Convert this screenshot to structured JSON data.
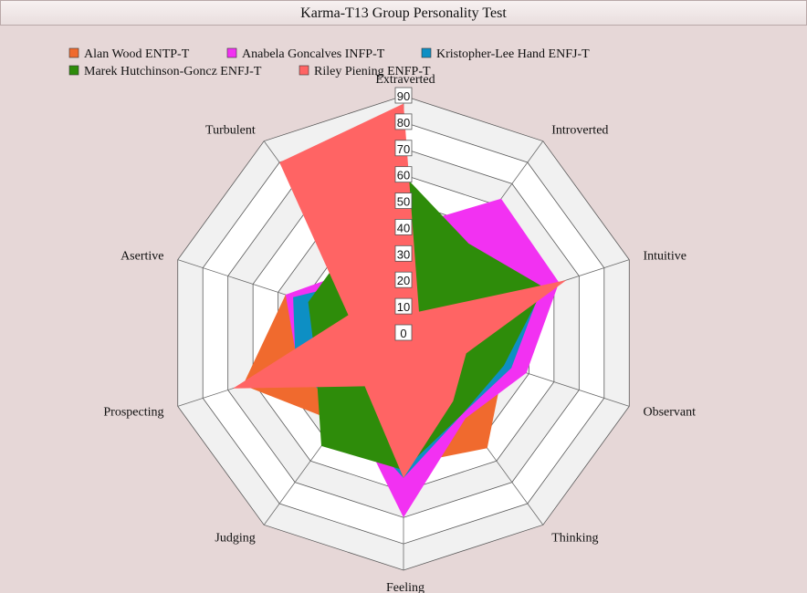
{
  "title": "Karma-T13 Group Personality Test",
  "chart_data": {
    "type": "radar",
    "title": "Karma-T13 Group Personality Test",
    "axes": [
      "Extraverted",
      "Introverted",
      "Intuitive",
      "Observant",
      "Thinking",
      "Feeling",
      "Judging",
      "Prospecting",
      "Asertive",
      "Turbulent"
    ],
    "radial_ticks": [
      0,
      10,
      20,
      30,
      40,
      50,
      60,
      70,
      80,
      90
    ],
    "rlim": [
      0,
      90
    ],
    "legend_position": "top-left",
    "series": [
      {
        "name": "Alan Wood ENTP-T",
        "color": "#f06a2e",
        "values": [
          37,
          12,
          60,
          40,
          54,
          50,
          42,
          64,
          47,
          18
        ]
      },
      {
        "name": "Anabela Goncalves INFP-T",
        "color": "#f231f2",
        "values": [
          40,
          63,
          62,
          49,
          40,
          70,
          35,
          42,
          47,
          30
        ]
      },
      {
        "name": "Kristopher-Lee Hand ENFJ-T",
        "color": "#0d8fc4",
        "values": [
          58,
          14,
          55,
          43,
          38,
          55,
          38,
          43,
          44,
          25
        ]
      },
      {
        "name": "Marek Hutchinson-Goncz ENFJ-T",
        "color": "#2e8c0a",
        "values": [
          60,
          42,
          56,
          40,
          38,
          52,
          53,
          35,
          38,
          38
        ]
      },
      {
        "name": "Riley Piening ENFP-T",
        "color": "#ff6464",
        "values": [
          87,
          10,
          65,
          25,
          32,
          55,
          25,
          68,
          22,
          80
        ]
      }
    ]
  }
}
